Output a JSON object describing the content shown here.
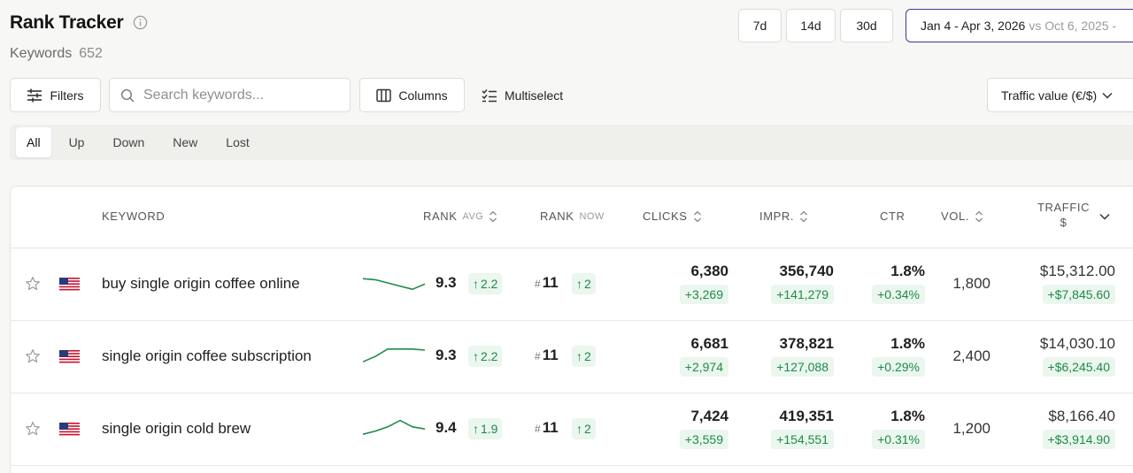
{
  "header": {
    "title": "Rank Tracker",
    "keywords_label": "Keywords",
    "keywords_count": "652"
  },
  "date_ranges": [
    "7d",
    "14d",
    "30d"
  ],
  "date_picker": {
    "range": "Jan 4 - Apr 3, 2026",
    "compare": "vs Oct 6, 2025 -"
  },
  "toolbar": {
    "filters_label": "Filters",
    "search_placeholder": "Search keywords...",
    "columns_label": "Columns",
    "multiselect_label": "Multiselect",
    "traffic_value_label": "Traffic value (€/$)"
  },
  "tabs": [
    "All",
    "Up",
    "Down",
    "New",
    "Lost"
  ],
  "active_tab": "All",
  "table": {
    "columns": {
      "keyword": "KEYWORD",
      "rank_avg": "RANK",
      "rank_avg_sub": "AVG",
      "rank_now": "RANK",
      "rank_now_sub": "NOW",
      "clicks": "CLICKS",
      "impr": "IMPR.",
      "ctr": "CTR",
      "vol": "VOL.",
      "traffic": "TRAFFIC",
      "traffic_sub": "$"
    },
    "rows": [
      {
        "keyword": "buy single origin coffee online",
        "rank_avg": "9.3",
        "rank_avg_delta": "2.2",
        "rank_now": "11",
        "rank_now_delta": "2",
        "clicks": "6,380",
        "clicks_delta": "+3,269",
        "impr": "356,740",
        "impr_delta": "+141,279",
        "ctr": "1.8%",
        "ctr_delta": "+0.34%",
        "vol": "1,800",
        "traffic": "$15,312.00",
        "traffic_delta": "+$7,845.60",
        "trend": [
          0.7,
          0.65,
          0.5,
          0.35,
          0.2,
          0.45
        ]
      },
      {
        "keyword": "single origin coffee subscription",
        "rank_avg": "9.3",
        "rank_avg_delta": "2.2",
        "rank_now": "11",
        "rank_now_delta": "2",
        "clicks": "6,681",
        "clicks_delta": "+2,974",
        "impr": "378,821",
        "impr_delta": "+127,088",
        "ctr": "1.8%",
        "ctr_delta": "+0.29%",
        "vol": "2,400",
        "traffic": "$14,030.10",
        "traffic_delta": "+$6,245.40",
        "trend": [
          0.2,
          0.45,
          0.8,
          0.8,
          0.8,
          0.75
        ]
      },
      {
        "keyword": "single origin cold brew",
        "rank_avg": "9.4",
        "rank_avg_delta": "1.9",
        "rank_now": "11",
        "rank_now_delta": "2",
        "clicks": "7,424",
        "clicks_delta": "+3,559",
        "impr": "419,351",
        "impr_delta": "+154,551",
        "ctr": "1.8%",
        "ctr_delta": "+0.31%",
        "vol": "1,200",
        "traffic": "$8,166.40",
        "traffic_delta": "+$3,914.90",
        "trend": [
          0.2,
          0.35,
          0.55,
          0.85,
          0.55,
          0.45
        ]
      }
    ]
  },
  "colors": {
    "accent_border": "#3c3a8e",
    "positive_text": "#1f8a4a",
    "positive_bg": "#eaf6ee",
    "spark_line": "#1f8a4a"
  }
}
